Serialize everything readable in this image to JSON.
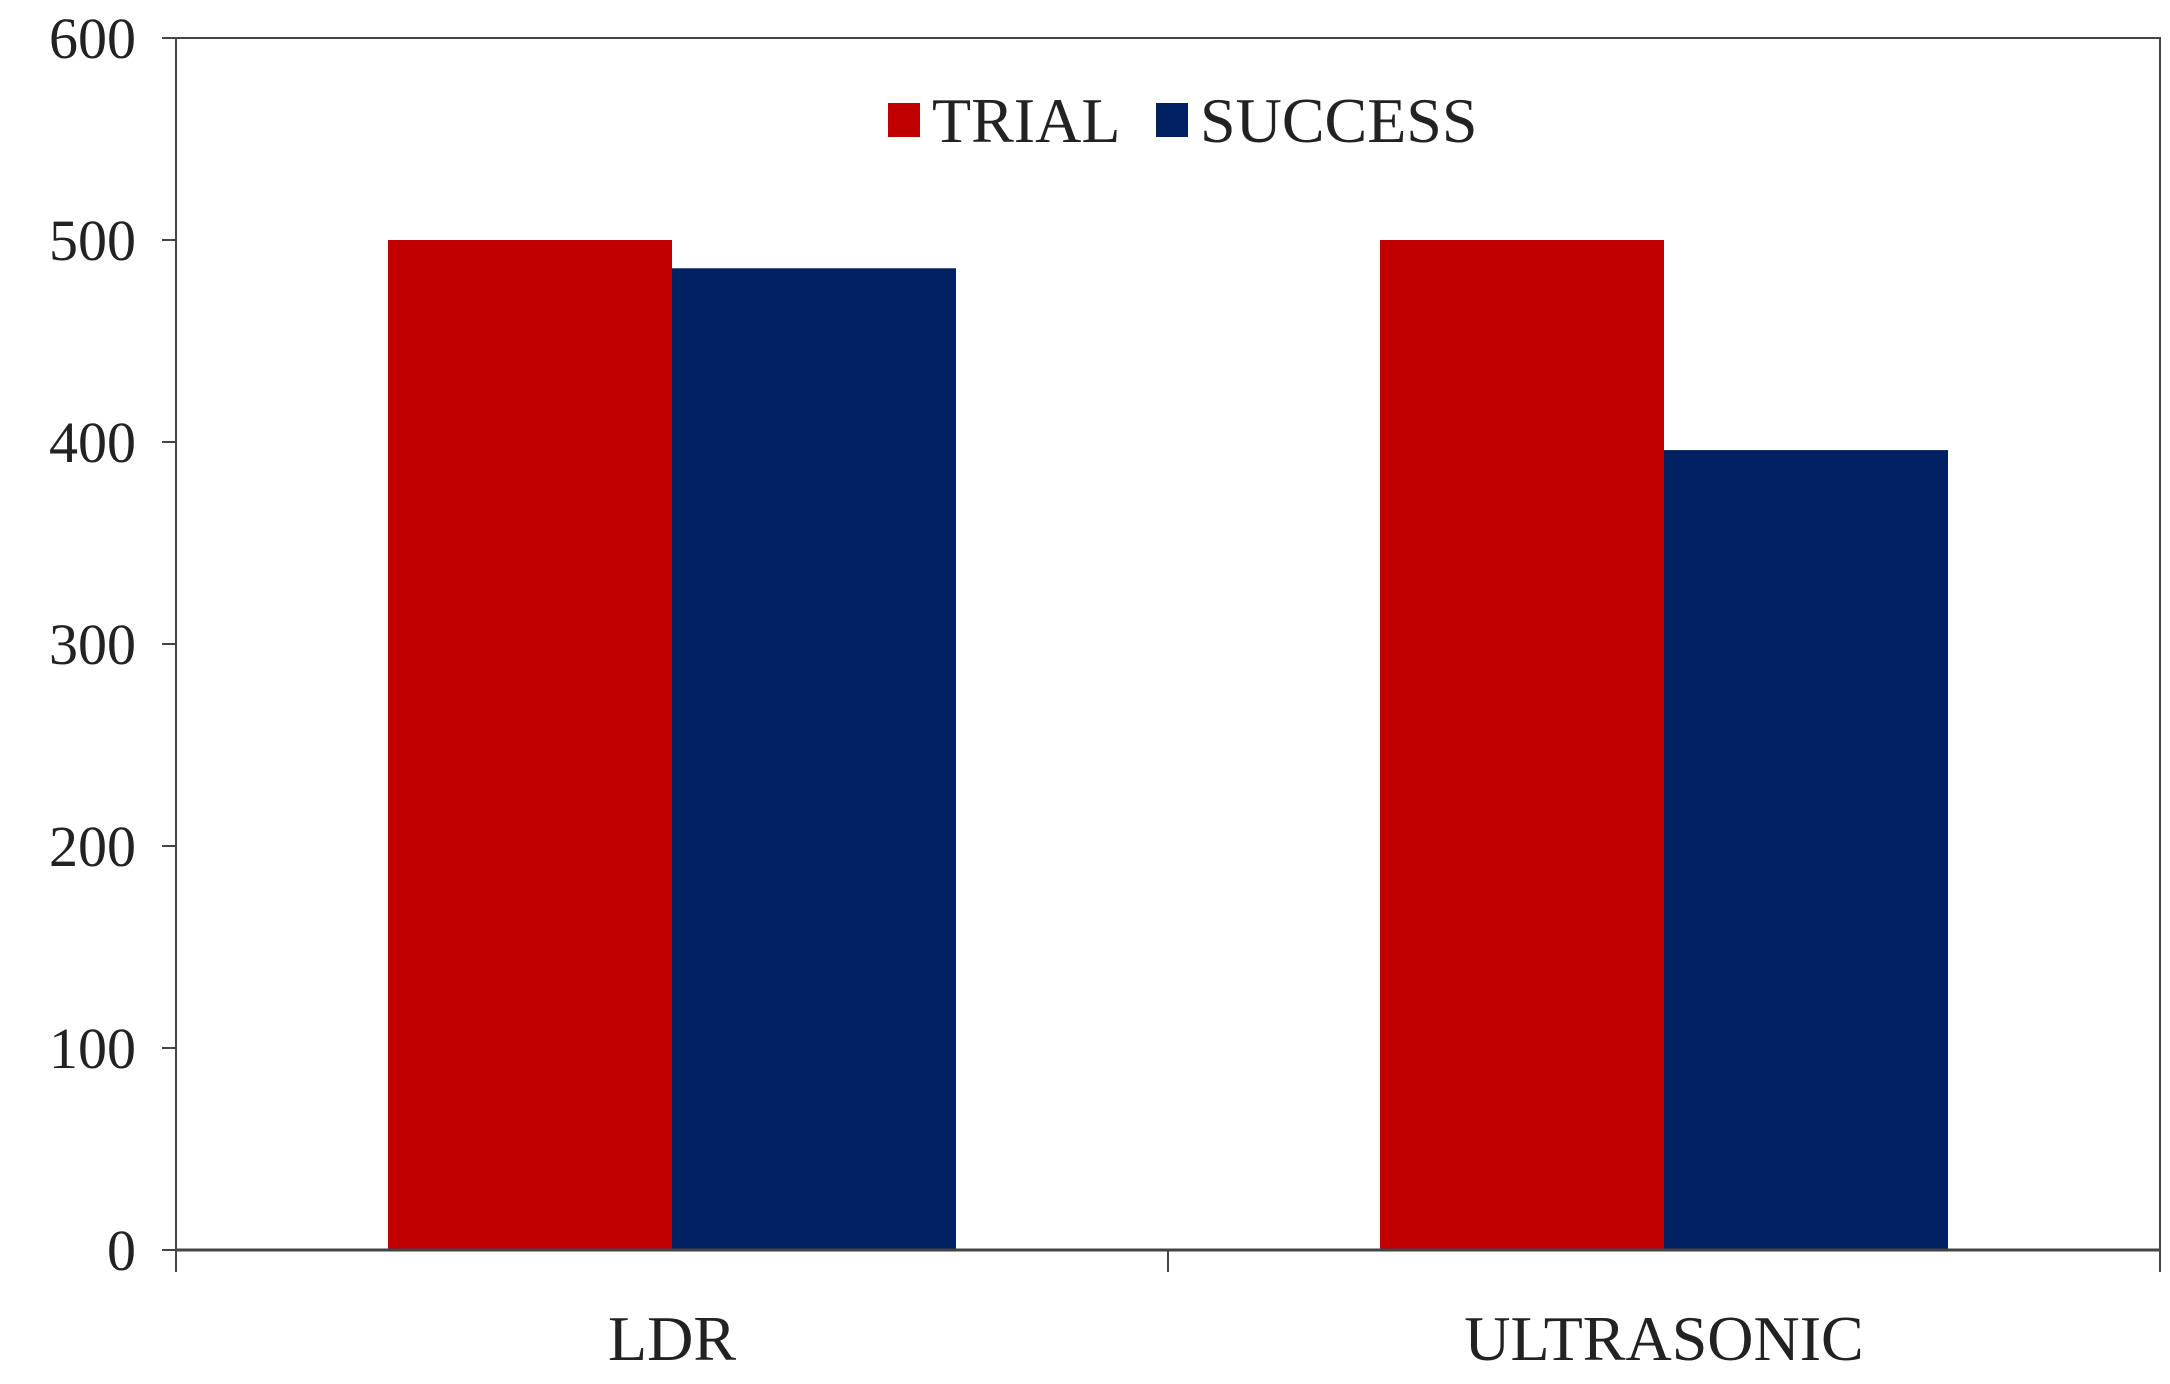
{
  "chart_data": {
    "type": "bar",
    "title": "",
    "xlabel": "",
    "ylabel": "",
    "categories": [
      "LDR",
      "ULTRASONIC"
    ],
    "series": [
      {
        "name": "TRIAL",
        "values": [
          500,
          500
        ],
        "color": "#C00000"
      },
      {
        "name": "SUCCESS",
        "values": [
          486,
          396
        ],
        "color": "#002060"
      }
    ],
    "ylim": [
      0,
      600
    ],
    "yticks": [
      0,
      100,
      200,
      300,
      400,
      500,
      600
    ],
    "legend": {
      "position": "top-center",
      "entries": [
        "TRIAL",
        "SUCCESS"
      ]
    },
    "grid": false
  }
}
